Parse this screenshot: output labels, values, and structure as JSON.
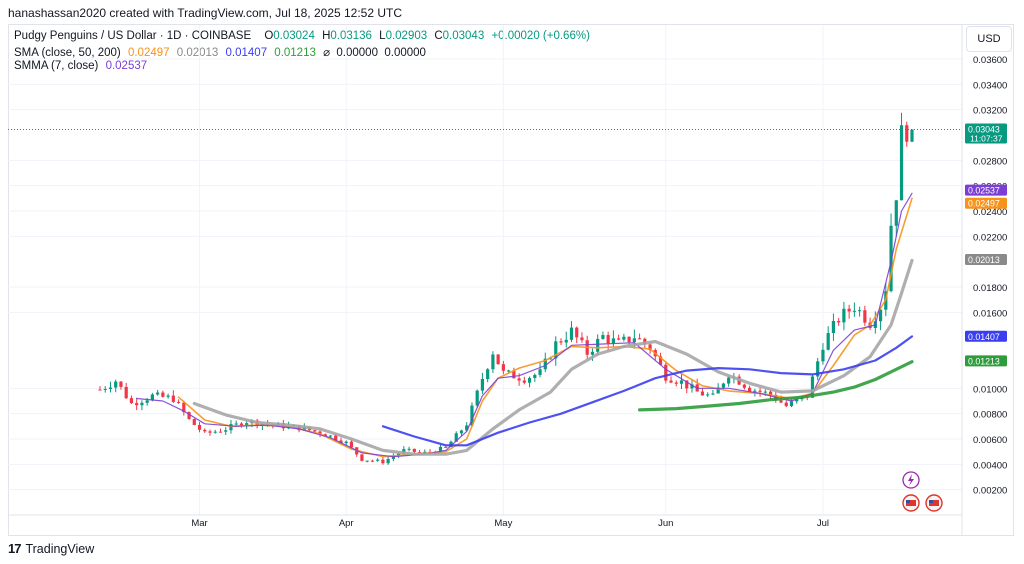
{
  "header": {
    "text": "hanashassan2020 created with TradingView.com, Jul 18, 2025 12:52 UTC"
  },
  "legend": {
    "title": "Pudgy Penguins / US Dollar · 1D · COINBASE",
    "o_label": "O",
    "o": "0.03024",
    "h_label": "H",
    "h": "0.03136",
    "l_label": "L",
    "l": "0.02903",
    "c_label": "C",
    "c": "0.03043",
    "change": "+0.00020 (+0.66%)",
    "sma_label": "SMA (close, 50, 200)",
    "sma_v1": "0.02497",
    "sma_v2": "0.02013",
    "sma_v3": "0.01407",
    "sma_v4": "0.01213",
    "sma_v5": "⌀  0.00000  0.00000",
    "smma_label": "SMMA (7, close)",
    "smma_v": "0.02537"
  },
  "currency_button": "USD",
  "footer": {
    "logo": "17",
    "brand": "TradingView"
  },
  "colors": {
    "up": "#089981",
    "down": "#f23645",
    "sma50": "#f7931a",
    "sma200_gray": "#9e9e9e",
    "sma_blue": "#3a3ef0",
    "sma_green": "#2e9c3c",
    "smma": "#7b3fd6"
  },
  "price_badges": [
    {
      "value": "0.03043",
      "sub": "11:07:37",
      "color": "#089981"
    },
    {
      "value": "0.02537",
      "color": "#7b3fd6"
    },
    {
      "value": "0.02497",
      "color": "#f7931a"
    },
    {
      "value": "0.02013",
      "color": "#8a8a8a"
    },
    {
      "value": "0.01407",
      "color": "#3a3ef0"
    },
    {
      "value": "0.01213",
      "color": "#2e9c3c"
    }
  ],
  "chart_data": {
    "type": "candlestick",
    "title": "Pudgy Penguins / US Dollar · 1D · COINBASE",
    "ylim": [
      0,
      0.0375
    ],
    "y_ticks": [
      "0.03600",
      "0.03400",
      "0.03200",
      "0.02800",
      "0.02600",
      "0.02400",
      "0.02200",
      "0.01800",
      "0.01600",
      "0.01000",
      "0.00800",
      "0.00600",
      "0.00400",
      "0.00200"
    ],
    "x_ticks": [
      {
        "label": "Mar",
        "day": 19
      },
      {
        "label": "Apr",
        "day": 47
      },
      {
        "label": "May",
        "day": 77
      },
      {
        "label": "Jun",
        "day": 108
      },
      {
        "label": "Jul",
        "day": 138
      }
    ],
    "start_day": 0,
    "days": 156,
    "last_price": 0.03043,
    "anchors": [
      [
        0,
        0.0099
      ],
      [
        3,
        0.0106
      ],
      [
        6,
        0.0088
      ],
      [
        10,
        0.0094
      ],
      [
        14,
        0.0092
      ],
      [
        17,
        0.0075
      ],
      [
        20,
        0.0064
      ],
      [
        24,
        0.0068
      ],
      [
        28,
        0.0074
      ],
      [
        33,
        0.0071
      ],
      [
        38,
        0.0069
      ],
      [
        43,
        0.0064
      ],
      [
        47,
        0.0057
      ],
      [
        50,
        0.0044
      ],
      [
        54,
        0.0042
      ],
      [
        58,
        0.0051
      ],
      [
        62,
        0.0049
      ],
      [
        66,
        0.0053
      ],
      [
        70,
        0.0072
      ],
      [
        73,
        0.0108
      ],
      [
        75,
        0.0129
      ],
      [
        77,
        0.0112
      ],
      [
        81,
        0.0108
      ],
      [
        84,
        0.0112
      ],
      [
        87,
        0.0135
      ],
      [
        90,
        0.0145
      ],
      [
        93,
        0.0128
      ],
      [
        96,
        0.0141
      ],
      [
        99,
        0.0135
      ],
      [
        102,
        0.0141
      ],
      [
        105,
        0.0132
      ],
      [
        108,
        0.011
      ],
      [
        111,
        0.0105
      ],
      [
        114,
        0.0097
      ],
      [
        117,
        0.0093
      ],
      [
        120,
        0.0112
      ],
      [
        124,
        0.01
      ],
      [
        128,
        0.0095
      ],
      [
        131,
        0.0086
      ],
      [
        135,
        0.0094
      ],
      [
        138,
        0.0135
      ],
      [
        141,
        0.0155
      ],
      [
        144,
        0.0165
      ],
      [
        147,
        0.0152
      ],
      [
        149,
        0.0165
      ],
      [
        150,
        0.018
      ],
      [
        151,
        0.023
      ],
      [
        152,
        0.0255
      ],
      [
        153,
        0.03
      ],
      [
        154,
        0.0305
      ],
      [
        155,
        0.0304
      ]
    ],
    "series": [
      {
        "name": "SMA (close, 50)",
        "color": "#f7931a",
        "points": [
          [
            15,
            0.0093
          ],
          [
            20,
            0.0075
          ],
          [
            25,
            0.007
          ],
          [
            30,
            0.0071
          ],
          [
            36,
            0.007
          ],
          [
            42,
            0.0064
          ],
          [
            48,
            0.0052
          ],
          [
            54,
            0.0046
          ],
          [
            60,
            0.0048
          ],
          [
            66,
            0.005
          ],
          [
            70,
            0.006
          ],
          [
            73,
            0.009
          ],
          [
            76,
            0.0108
          ],
          [
            80,
            0.0116
          ],
          [
            85,
            0.0122
          ],
          [
            90,
            0.0133
          ],
          [
            95,
            0.0132
          ],
          [
            100,
            0.0133
          ],
          [
            105,
            0.0131
          ],
          [
            110,
            0.0114
          ],
          [
            115,
            0.0102
          ],
          [
            120,
            0.0098
          ],
          [
            126,
            0.0096
          ],
          [
            132,
            0.0092
          ],
          [
            136,
            0.0096
          ],
          [
            140,
            0.0118
          ],
          [
            144,
            0.0142
          ],
          [
            147,
            0.015
          ],
          [
            150,
            0.017
          ],
          [
            152,
            0.021
          ],
          [
            155,
            0.025
          ]
        ]
      },
      {
        "name": "SMMA (7, close)",
        "color": "#7b3fd6",
        "points": [
          [
            7,
            0.0092
          ],
          [
            12,
            0.009
          ],
          [
            16,
            0.0082
          ],
          [
            20,
            0.0072
          ],
          [
            26,
            0.007
          ],
          [
            32,
            0.0071
          ],
          [
            38,
            0.0068
          ],
          [
            44,
            0.0061
          ],
          [
            50,
            0.0049
          ],
          [
            56,
            0.0046
          ],
          [
            62,
            0.0048
          ],
          [
            66,
            0.0051
          ],
          [
            70,
            0.0066
          ],
          [
            73,
            0.0094
          ],
          [
            76,
            0.0108
          ],
          [
            80,
            0.011
          ],
          [
            85,
            0.0118
          ],
          [
            90,
            0.0134
          ],
          [
            96,
            0.0135
          ],
          [
            102,
            0.0136
          ],
          [
            108,
            0.0115
          ],
          [
            114,
            0.01
          ],
          [
            120,
            0.01
          ],
          [
            126,
            0.0096
          ],
          [
            132,
            0.009
          ],
          [
            136,
            0.0096
          ],
          [
            140,
            0.013
          ],
          [
            144,
            0.0146
          ],
          [
            148,
            0.015
          ],
          [
            151,
            0.02
          ],
          [
            153,
            0.024
          ],
          [
            155,
            0.0254
          ]
        ]
      },
      {
        "name": "SMA (close, 200) gray",
        "color": "#a6a6a6",
        "points": [
          [
            18,
            0.0088
          ],
          [
            24,
            0.0079
          ],
          [
            30,
            0.0073
          ],
          [
            36,
            0.0071
          ],
          [
            42,
            0.0068
          ],
          [
            48,
            0.006
          ],
          [
            54,
            0.0051
          ],
          [
            60,
            0.0048
          ],
          [
            66,
            0.0048
          ],
          [
            70,
            0.0051
          ],
          [
            75,
            0.0068
          ],
          [
            80,
            0.0083
          ],
          [
            86,
            0.0097
          ],
          [
            90,
            0.0115
          ],
          [
            95,
            0.0127
          ],
          [
            100,
            0.0133
          ],
          [
            106,
            0.0137
          ],
          [
            112,
            0.0127
          ],
          [
            118,
            0.0113
          ],
          [
            124,
            0.0104
          ],
          [
            130,
            0.0097
          ],
          [
            136,
            0.0098
          ],
          [
            142,
            0.011
          ],
          [
            147,
            0.0125
          ],
          [
            151,
            0.015
          ],
          [
            153,
            0.0175
          ],
          [
            155,
            0.0201
          ]
        ]
      },
      {
        "name": "SMA blue",
        "color": "#3a3ef0",
        "points": [
          [
            54,
            0.007
          ],
          [
            60,
            0.0062
          ],
          [
            66,
            0.0055
          ],
          [
            70,
            0.0055
          ],
          [
            76,
            0.0065
          ],
          [
            82,
            0.0073
          ],
          [
            88,
            0.008
          ],
          [
            94,
            0.0089
          ],
          [
            100,
            0.0098
          ],
          [
            106,
            0.0108
          ],
          [
            112,
            0.0114
          ],
          [
            118,
            0.0116
          ],
          [
            124,
            0.0115
          ],
          [
            130,
            0.0112
          ],
          [
            136,
            0.0111
          ],
          [
            142,
            0.0115
          ],
          [
            148,
            0.0122
          ],
          [
            152,
            0.0132
          ],
          [
            155,
            0.0141
          ]
        ]
      },
      {
        "name": "SMA green",
        "color": "#2e9c3c",
        "points": [
          [
            103,
            0.0083
          ],
          [
            110,
            0.0084
          ],
          [
            116,
            0.0086
          ],
          [
            122,
            0.0088
          ],
          [
            128,
            0.0091
          ],
          [
            134,
            0.0093
          ],
          [
            140,
            0.0097
          ],
          [
            144,
            0.0101
          ],
          [
            148,
            0.0107
          ],
          [
            152,
            0.0115
          ],
          [
            155,
            0.0121
          ]
        ]
      }
    ]
  }
}
